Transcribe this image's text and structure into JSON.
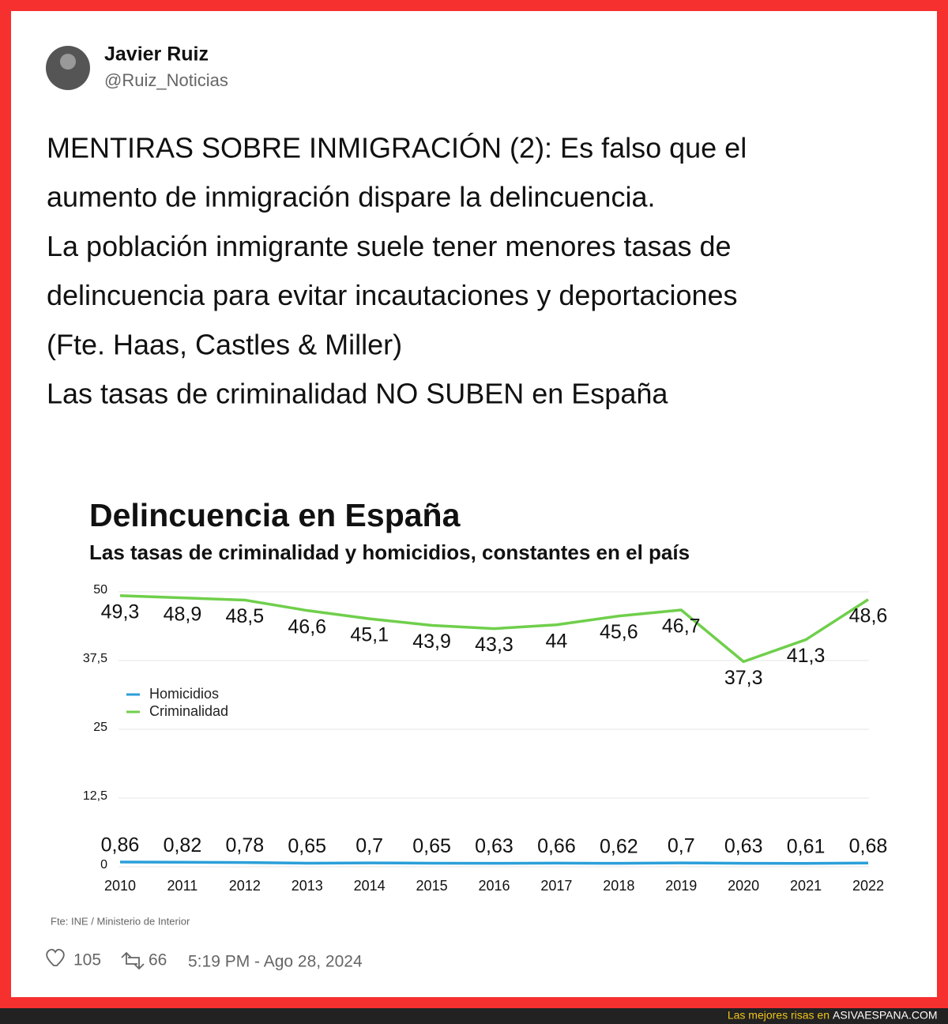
{
  "tweet": {
    "name": "Javier Ruiz",
    "handle": "@Ruiz_Noticias",
    "text_lines": [
      "MENTIRAS SOBRE INMIGRACIÓN (2): Es falso que el",
      "aumento de inmigración dispare la delincuencia.",
      "La población inmigrante suele tener menores tasas de",
      "delincuencia para evitar incautaciones y deportaciones",
      "(Fte. Haas, Castles & Miller)",
      "Las tasas de criminalidad NO SUBEN en España"
    ],
    "likes": "105",
    "retweets": "66",
    "timestamp": "5:19 PM - Ago 28, 2024"
  },
  "chart_data": {
    "type": "line",
    "title": "Delincuencia en España",
    "subtitle": "Las tasas de criminalidad y homicidios, constantes en el país",
    "categories": [
      "2010",
      "2011",
      "2012",
      "2013",
      "2014",
      "2015",
      "2016",
      "2017",
      "2018",
      "2019",
      "2020",
      "2021",
      "2022"
    ],
    "series": [
      {
        "name": "Homicidios",
        "color": "#2b9fd9",
        "values": [
          0.86,
          0.82,
          0.78,
          0.65,
          0.7,
          0.65,
          0.63,
          0.66,
          0.62,
          0.7,
          0.63,
          0.61,
          0.68
        ],
        "value_labels": [
          "0,86",
          "0,82",
          "0,78",
          "0,65",
          "0,7",
          "0,65",
          "0,63",
          "0,66",
          "0,62",
          "0,7",
          "0,63",
          "0,61",
          "0,68"
        ]
      },
      {
        "name": "Criminalidad",
        "color": "#6fcf4b",
        "values": [
          49.3,
          48.9,
          48.5,
          46.6,
          45.1,
          43.9,
          43.3,
          44,
          45.6,
          46.7,
          37.3,
          41.3,
          48.6
        ],
        "value_labels": [
          "49,3",
          "48,9",
          "48,5",
          "46,6",
          "45,1",
          "43,9",
          "43,3",
          "44",
          "45,6",
          "46,7",
          "37,3",
          "41,3",
          "48,6"
        ]
      }
    ],
    "ylim": [
      0,
      50
    ],
    "yticks": [
      0,
      {
        "value": 12.5,
        "label": "12,5"
      },
      25,
      {
        "value": 37.5,
        "label": "37,5"
      },
      50
    ],
    "grid": true,
    "source": "Fte: INE / Ministerio de Interior"
  },
  "footer": {
    "lead": "Las mejores risas en",
    "site": "ASIVAESPANA.COM"
  }
}
